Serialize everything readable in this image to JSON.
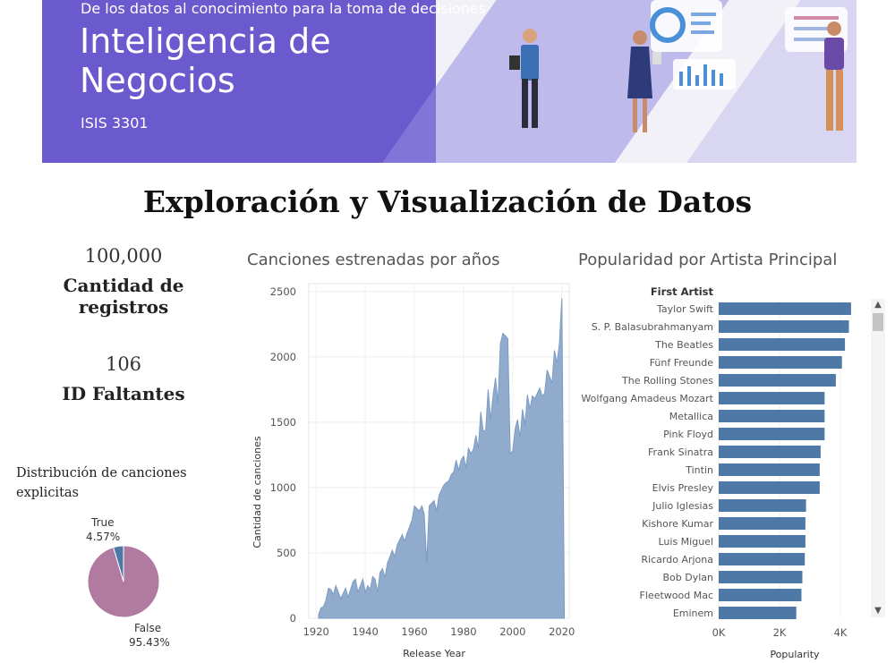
{
  "banner": {
    "subtitle": "De los datos al conocimiento para la toma de decisiones",
    "title_line1": "Inteligencia de",
    "title_line2": "Negocios",
    "course": "ISIS 3301"
  },
  "page_title": "Exploración y Visualización de Datos",
  "kpis": [
    {
      "value": "100,000",
      "label": "Cantidad de registros"
    },
    {
      "value": "106",
      "label": "ID Faltantes"
    }
  ],
  "colors": {
    "area": "#7c9cc4",
    "bar": "#4e79a7",
    "pie_false": "#b07aa1",
    "pie_true": "#4e79a7",
    "banner": "#6a5acd"
  },
  "chart_data": [
    {
      "type": "area",
      "title": "Canciones estrenadas por años",
      "xlabel": "Release Year",
      "ylabel": "Cantidad de canciones",
      "xlim": [
        1917,
        2023
      ],
      "ylim": [
        0,
        2560
      ],
      "xticks": [
        1920,
        1940,
        1960,
        1980,
        2000,
        2020
      ],
      "yticks": [
        0,
        500,
        1000,
        1500,
        2000,
        2500
      ],
      "x": [
        1921,
        1922,
        1923,
        1924,
        1925,
        1926,
        1927,
        1928,
        1929,
        1930,
        1931,
        1932,
        1933,
        1934,
        1935,
        1936,
        1937,
        1938,
        1939,
        1940,
        1941,
        1942,
        1943,
        1944,
        1945,
        1946,
        1947,
        1948,
        1949,
        1950,
        1951,
        1952,
        1953,
        1954,
        1955,
        1956,
        1957,
        1958,
        1959,
        1960,
        1961,
        1962,
        1963,
        1964,
        1965,
        1966,
        1967,
        1968,
        1969,
        1970,
        1971,
        1972,
        1973,
        1974,
        1975,
        1976,
        1977,
        1978,
        1979,
        1980,
        1981,
        1982,
        1983,
        1984,
        1985,
        1986,
        1987,
        1988,
        1989,
        1990,
        1991,
        1992,
        1993,
        1994,
        1995,
        1996,
        1997,
        1998,
        1999,
        2000,
        2001,
        2002,
        2003,
        2004,
        2005,
        2006,
        2007,
        2008,
        2009,
        2010,
        2011,
        2012,
        2013,
        2014,
        2015,
        2016,
        2017,
        2018,
        2019,
        2020,
        2021
      ],
      "y": [
        30,
        80,
        90,
        140,
        230,
        220,
        180,
        250,
        200,
        150,
        190,
        230,
        160,
        220,
        280,
        300,
        200,
        250,
        300,
        200,
        250,
        220,
        320,
        300,
        200,
        350,
        380,
        310,
        420,
        470,
        520,
        470,
        560,
        600,
        640,
        590,
        650,
        700,
        750,
        860,
        840,
        820,
        860,
        800,
        420,
        860,
        880,
        900,
        820,
        940,
        980,
        1020,
        1040,
        1050,
        1100,
        1120,
        1210,
        1130,
        1210,
        1240,
        1150,
        1300,
        1260,
        1290,
        1400,
        1300,
        1580,
        1430,
        1440,
        1750,
        1520,
        1700,
        1840,
        1650,
        2100,
        2180,
        2160,
        2140,
        1260,
        1280,
        1450,
        1520,
        1380,
        1600,
        1480,
        1710,
        1600,
        1700,
        1680,
        1720,
        1760,
        1700,
        1720,
        1900,
        1850,
        1800,
        2050,
        1950,
        2100,
        2450,
        80
      ]
    },
    {
      "type": "bar",
      "title": "Popularidad por Artista Principal",
      "row_header": "First Artist",
      "xlabel": "Popularity",
      "xlim": [
        0,
        5000
      ],
      "xticks": [
        0,
        2000,
        4000
      ],
      "xtick_labels": [
        "0K",
        "2K",
        "4K"
      ],
      "categories": [
        "Taylor Swift",
        "S. P. Balasubrahmanyam",
        "The Beatles",
        "Fünf Freunde",
        "The Rolling Stones",
        "Wolfgang Amadeus Mozart",
        "Metallica",
        "Pink Floyd",
        "Frank Sinatra",
        "Tintin",
        "Elvis Presley",
        "Julio Iglesias",
        "Kishore Kumar",
        "Luis Miguel",
        "Ricardo Arjona",
        "Bob Dylan",
        "Fleetwood Mac",
        "Eminem"
      ],
      "values": [
        4350,
        4280,
        4150,
        4050,
        3850,
        3480,
        3480,
        3480,
        3350,
        3320,
        3320,
        2870,
        2850,
        2850,
        2830,
        2750,
        2720,
        2550
      ]
    },
    {
      "type": "pie",
      "title": "Distribución de canciones explicitas",
      "slices": [
        {
          "label": "True",
          "value": 4.57,
          "value_text": "4.57%"
        },
        {
          "label": "False",
          "value": 95.43,
          "value_text": "95.43%"
        }
      ]
    }
  ]
}
